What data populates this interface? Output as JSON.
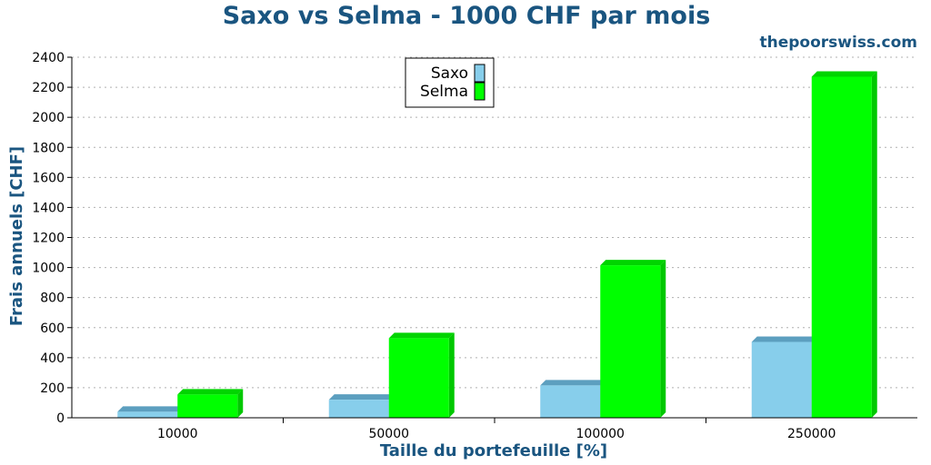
{
  "colors": {
    "accent": "#1a5580",
    "saxo": "#87ceeb",
    "saxo_side": "#5c9fbf",
    "saxo_top": "#5c9fbf",
    "selma": "#00ff00",
    "selma_side": "#00c800",
    "selma_top": "#00d400"
  },
  "chart_data": {
    "type": "bar",
    "title": "Saxo vs Selma - 1000 CHF par mois",
    "subtitle": "thepoorswiss.com",
    "xlabel": "Taille du portefeuille [%]",
    "ylabel": "Frais annuels [CHF]",
    "categories": [
      "10000",
      "50000",
      "100000",
      "250000"
    ],
    "series": [
      {
        "name": "Saxo",
        "values": [
          40,
          120,
          215,
          505
        ]
      },
      {
        "name": "Selma",
        "values": [
          155,
          530,
          1015,
          2270
        ]
      }
    ],
    "ylim": [
      0,
      2400
    ],
    "yticks": [
      0,
      200,
      400,
      600,
      800,
      1000,
      1200,
      1400,
      1600,
      1800,
      2000,
      2200,
      2400
    ],
    "grid": true,
    "legend_position": "top-center"
  }
}
